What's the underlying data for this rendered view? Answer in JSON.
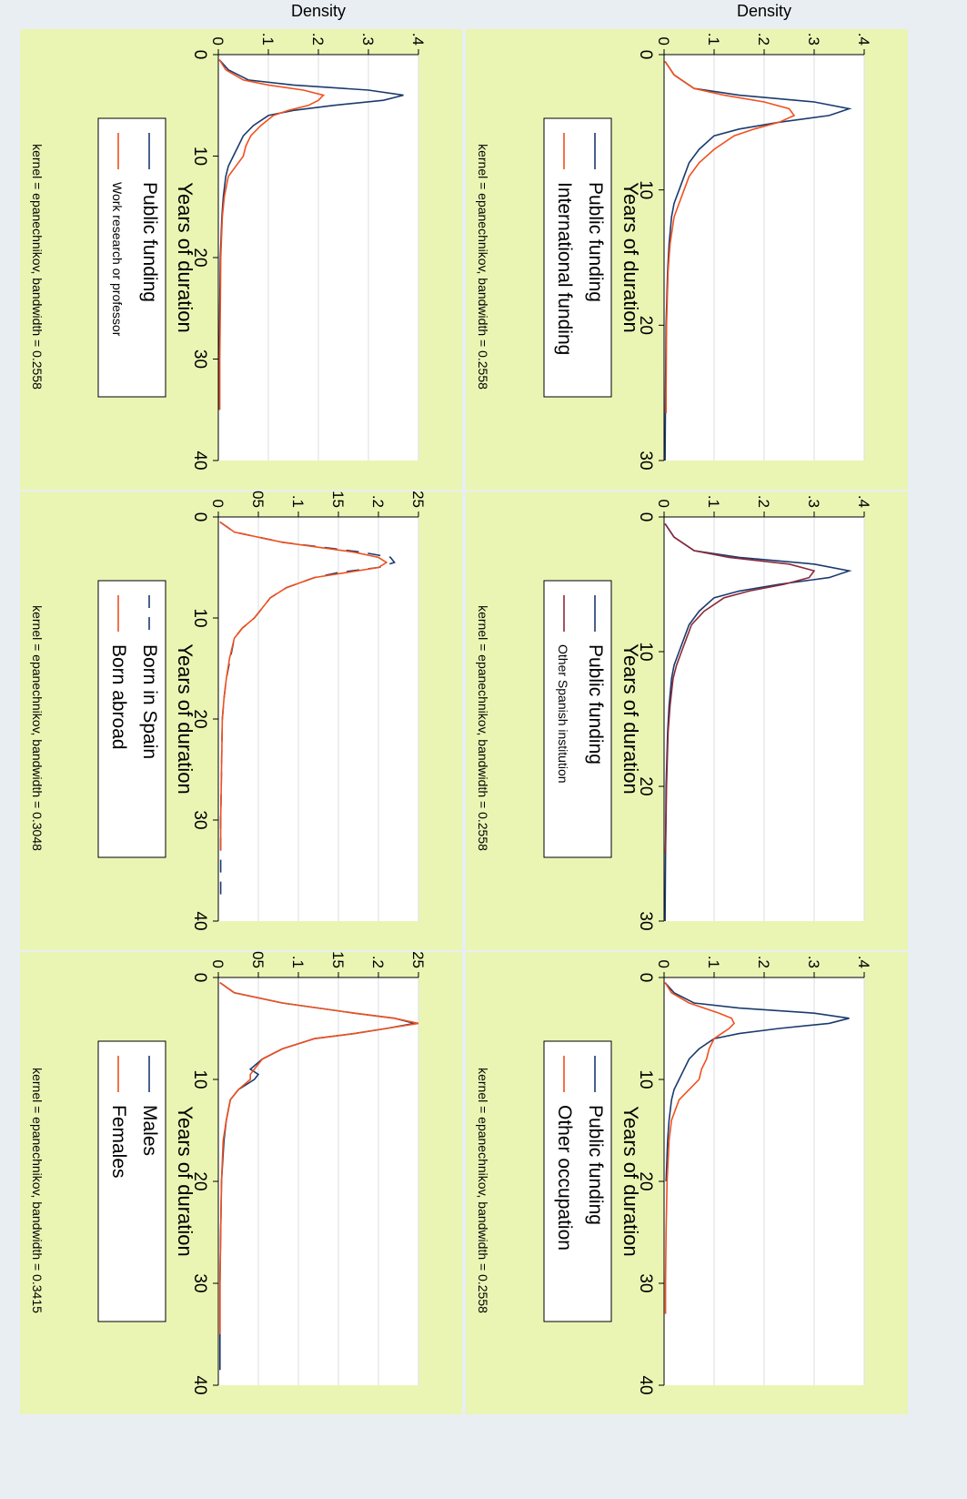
{
  "colors": {
    "outer_background": "#e9eef2",
    "panel_background": "#eaf5b4",
    "plot_background": "#ffffff",
    "grid": "#d9dee3",
    "series_blue": "#1a3b6e",
    "series_orange": "#f0501e",
    "series_maroon": "#8b2a3a"
  },
  "chart_data": [
    {
      "type": "line",
      "panel": "top-left",
      "xlabel": "Years of duration",
      "ylabel": "Density",
      "xlim": [
        0,
        40
      ],
      "ylim": [
        0,
        0.25
      ],
      "xticks": [
        "0",
        "10",
        "20",
        "30",
        "40"
      ],
      "yticks": [
        "0",
        ".05",
        ".1",
        ".15",
        ".2",
        ".25"
      ],
      "grid": true,
      "legend_position": "right",
      "note": "kernel = epanechnikov, bandwidth = 0.3415",
      "series": [
        {
          "name": "Males",
          "color": "#1a3b6e",
          "dash": "solid",
          "x": [
            0.5,
            1.5,
            2.5,
            3.5,
            4.0,
            4.5,
            5.0,
            5.5,
            6.0,
            7.0,
            8.0,
            9.0,
            9.5,
            10.0,
            11.0,
            12.0,
            14.0,
            16.0,
            20.0,
            25.0,
            30.0,
            35.0,
            38.5
          ],
          "y": [
            0.002,
            0.02,
            0.08,
            0.17,
            0.22,
            0.245,
            0.21,
            0.17,
            0.12,
            0.08,
            0.055,
            0.04,
            0.05,
            0.045,
            0.025,
            0.015,
            0.01,
            0.007,
            0.004,
            0.003,
            0.002,
            0.002,
            0.002
          ]
        },
        {
          "name": "Females",
          "color": "#f0501e",
          "dash": "solid",
          "x": [
            0.5,
            1.5,
            2.5,
            3.5,
            4.0,
            4.5,
            5.0,
            5.5,
            6.0,
            7.0,
            8.0,
            9.0,
            9.5,
            10.0,
            11.0,
            12.0,
            14.0,
            16.0,
            20.0,
            25.0,
            30.0,
            35.0
          ],
          "y": [
            0.002,
            0.02,
            0.08,
            0.17,
            0.22,
            0.25,
            0.21,
            0.17,
            0.12,
            0.08,
            0.055,
            0.045,
            0.04,
            0.04,
            0.025,
            0.015,
            0.01,
            0.006,
            0.004,
            0.003,
            0.002,
            0.002
          ]
        }
      ]
    },
    {
      "type": "line",
      "panel": "top-middle",
      "xlabel": "Years of duration",
      "ylabel": "Density",
      "xlim": [
        0,
        40
      ],
      "ylim": [
        0,
        0.25
      ],
      "xticks": [
        "0",
        "10",
        "20",
        "30",
        "40"
      ],
      "yticks": [
        "0",
        ".05",
        ".1",
        ".15",
        ".2",
        ".25"
      ],
      "grid": true,
      "legend_position": "right",
      "note": "kernel = epanechnikov, bandwidth = 0.3048",
      "series": [
        {
          "name": "Born in Spain",
          "color": "#1a3b6e",
          "dash": "long-dash",
          "x": [
            0.5,
            1.5,
            2.5,
            3.5,
            4.0,
            4.5,
            5.0,
            5.5,
            6.0,
            7.0,
            8.0,
            9.0,
            10.0,
            11.0,
            12.0,
            14.0,
            16.0,
            18.0,
            20.0,
            25.0,
            30.0,
            35.0,
            38.0
          ],
          "y": [
            0.002,
            0.02,
            0.08,
            0.18,
            0.215,
            0.22,
            0.2,
            0.15,
            0.12,
            0.085,
            0.065,
            0.055,
            0.045,
            0.03,
            0.02,
            0.015,
            0.01,
            0.007,
            0.005,
            0.004,
            0.003,
            0.003,
            0.003
          ]
        },
        {
          "name": "Born abroad",
          "color": "#f0501e",
          "dash": "solid",
          "x": [
            0.5,
            1.5,
            2.5,
            3.5,
            4.0,
            4.5,
            5.0,
            5.5,
            6.0,
            7.0,
            8.0,
            9.0,
            10.0,
            11.0,
            12.0,
            14.0,
            16.0,
            18.0,
            20.0,
            25.0,
            30.0,
            33.0
          ],
          "y": [
            0.002,
            0.02,
            0.08,
            0.17,
            0.2,
            0.21,
            0.2,
            0.16,
            0.12,
            0.085,
            0.065,
            0.055,
            0.045,
            0.03,
            0.02,
            0.014,
            0.01,
            0.007,
            0.005,
            0.004,
            0.003,
            0.003
          ]
        }
      ]
    },
    {
      "type": "line",
      "panel": "top-right",
      "xlabel": "Years of duration",
      "ylabel": "Density",
      "xlim": [
        0,
        40
      ],
      "ylim": [
        0,
        0.4
      ],
      "xticks": [
        "0",
        "10",
        "20",
        "30",
        "40"
      ],
      "yticks": [
        "0",
        ".1",
        ".2",
        ".3",
        ".4"
      ],
      "grid": true,
      "legend_position": "right",
      "note": "kernel = epanechnikov, bandwidth = 0.2558",
      "series": [
        {
          "name": "Public funding",
          "color": "#1a3b6e",
          "dash": "solid",
          "x": [
            0.5,
            1.5,
            2.5,
            3.0,
            3.5,
            4.0,
            4.5,
            5.0,
            5.5,
            6.0,
            7.0,
            8.0,
            9.0,
            10.0,
            11.0,
            12.0,
            14.0,
            16.0,
            20.0,
            25.0,
            30.0,
            35.0
          ],
          "y": [
            0.002,
            0.02,
            0.06,
            0.15,
            0.3,
            0.37,
            0.33,
            0.23,
            0.15,
            0.1,
            0.07,
            0.05,
            0.04,
            0.03,
            0.02,
            0.015,
            0.01,
            0.007,
            0.004,
            0.003,
            0.002,
            0.002
          ]
        },
        {
          "name": "Work research or professor",
          "color": "#f0501e",
          "dash": "solid",
          "x": [
            0.5,
            1.5,
            2.5,
            3.0,
            3.5,
            4.0,
            4.5,
            5.0,
            5.5,
            6.0,
            7.0,
            8.0,
            9.0,
            10.0,
            11.0,
            12.0,
            14.0,
            16.0,
            20.0,
            25.0,
            30.0,
            35.0
          ],
          "y": [
            0.002,
            0.015,
            0.05,
            0.1,
            0.17,
            0.21,
            0.2,
            0.18,
            0.14,
            0.11,
            0.085,
            0.065,
            0.055,
            0.05,
            0.035,
            0.02,
            0.012,
            0.008,
            0.005,
            0.004,
            0.003,
            0.003
          ]
        }
      ]
    },
    {
      "type": "line",
      "panel": "bottom-left",
      "xlabel": "Years of duration",
      "ylabel": "Density",
      "xlim": [
        0,
        40
      ],
      "ylim": [
        0,
        0.4
      ],
      "xticks": [
        "0",
        "10",
        "20",
        "30",
        "40"
      ],
      "yticks": [
        "0",
        ".1",
        ".2",
        ".3",
        ".4"
      ],
      "grid": true,
      "legend_position": "right",
      "note": "kernel = epanechnikov, bandwidth = 0.2558",
      "series": [
        {
          "name": "Public funding",
          "color": "#1a3b6e",
          "dash": "solid",
          "x": [
            0.5,
            1.5,
            2.5,
            3.0,
            3.5,
            4.0,
            4.5,
            5.0,
            5.5,
            6.0,
            7.0,
            8.0,
            9.0,
            10.0,
            11.0,
            12.0,
            14.0,
            16.0,
            20.0
          ],
          "y": [
            0.002,
            0.02,
            0.06,
            0.15,
            0.3,
            0.37,
            0.33,
            0.23,
            0.15,
            0.1,
            0.07,
            0.05,
            0.04,
            0.03,
            0.02,
            0.015,
            0.01,
            0.007,
            0.004
          ]
        },
        {
          "name": "Other occupation",
          "color": "#f0501e",
          "dash": "solid",
          "x": [
            0.5,
            1.5,
            2.5,
            3.0,
            3.5,
            4.0,
            4.5,
            5.0,
            5.5,
            6.0,
            7.0,
            8.0,
            9.0,
            10.0,
            11.0,
            12.0,
            14.0,
            16.0,
            20.0,
            25.0,
            30.0,
            33.0
          ],
          "y": [
            0.002,
            0.015,
            0.05,
            0.08,
            0.11,
            0.135,
            0.14,
            0.13,
            0.115,
            0.1,
            0.09,
            0.085,
            0.075,
            0.07,
            0.05,
            0.03,
            0.015,
            0.01,
            0.006,
            0.004,
            0.003,
            0.003
          ]
        }
      ]
    },
    {
      "type": "line",
      "panel": "bottom-middle",
      "xlabel": "Years of duration",
      "ylabel": "Density",
      "xlim": [
        0,
        30
      ],
      "ylim": [
        0,
        0.4
      ],
      "xticks": [
        "0",
        "10",
        "20",
        "30"
      ],
      "yticks": [
        "0",
        ".1",
        ".2",
        ".3",
        ".4"
      ],
      "grid": true,
      "legend_position": "right",
      "note": "kernel = epanechnikov, bandwidth = 0.2558",
      "series": [
        {
          "name": "Public funding",
          "color": "#1a3b6e",
          "dash": "solid",
          "x": [
            0.5,
            1.5,
            2.5,
            3.0,
            3.5,
            4.0,
            4.5,
            5.0,
            5.5,
            6.0,
            7.0,
            8.0,
            9.0,
            10.0,
            11.0,
            12.0,
            14.0,
            16.0,
            20.0,
            25.0,
            30.0
          ],
          "y": [
            0.002,
            0.02,
            0.06,
            0.15,
            0.3,
            0.37,
            0.33,
            0.23,
            0.15,
            0.1,
            0.07,
            0.05,
            0.04,
            0.03,
            0.02,
            0.015,
            0.01,
            0.007,
            0.004,
            0.003,
            0.002
          ]
        },
        {
          "name": "Other Spanish institution",
          "color": "#8b2a3a",
          "dash": "solid",
          "x": [
            0.5,
            1.5,
            2.5,
            3.0,
            3.5,
            4.0,
            4.5,
            5.0,
            5.5,
            6.0,
            7.0,
            8.0,
            9.0,
            10.0,
            11.0,
            12.0,
            14.0,
            16.0,
            20.0,
            25.0
          ],
          "y": [
            0.002,
            0.02,
            0.06,
            0.13,
            0.25,
            0.3,
            0.29,
            0.24,
            0.17,
            0.12,
            0.08,
            0.055,
            0.045,
            0.035,
            0.025,
            0.018,
            0.012,
            0.008,
            0.005,
            0.003
          ]
        }
      ]
    },
    {
      "type": "line",
      "panel": "bottom-right",
      "xlabel": "Years of duration",
      "ylabel": "Density",
      "xlim": [
        0,
        30
      ],
      "ylim": [
        0,
        0.4
      ],
      "xticks": [
        "0",
        "10",
        "20",
        "30"
      ],
      "yticks": [
        "0",
        ".1",
        ".2",
        ".3",
        ".4"
      ],
      "grid": true,
      "legend_position": "right",
      "note": "kernel = epanechnikov, bandwidth = 0.2558",
      "series": [
        {
          "name": "Public funding",
          "color": "#1a3b6e",
          "dash": "solid",
          "x": [
            0.5,
            1.5,
            2.5,
            3.0,
            3.5,
            4.0,
            4.5,
            5.0,
            5.5,
            6.0,
            7.0,
            8.0,
            9.0,
            10.0,
            11.0,
            12.0,
            14.0,
            16.0,
            20.0,
            25.0,
            30.0
          ],
          "y": [
            0.002,
            0.02,
            0.06,
            0.15,
            0.3,
            0.37,
            0.33,
            0.23,
            0.15,
            0.1,
            0.07,
            0.05,
            0.04,
            0.03,
            0.02,
            0.015,
            0.01,
            0.007,
            0.004,
            0.003,
            0.002
          ]
        },
        {
          "name": "International funding",
          "color": "#f0501e",
          "dash": "solid",
          "x": [
            0.5,
            1.5,
            2.5,
            3.0,
            3.5,
            4.0,
            4.5,
            5.0,
            5.5,
            6.0,
            7.0,
            8.0,
            9.0,
            10.0,
            11.0,
            12.0,
            14.0,
            16.0,
            20.0,
            25.0,
            26.5
          ],
          "y": [
            0.002,
            0.02,
            0.06,
            0.12,
            0.2,
            0.25,
            0.26,
            0.23,
            0.18,
            0.14,
            0.1,
            0.07,
            0.05,
            0.04,
            0.03,
            0.02,
            0.012,
            0.008,
            0.005,
            0.004,
            0.004
          ]
        }
      ]
    }
  ]
}
